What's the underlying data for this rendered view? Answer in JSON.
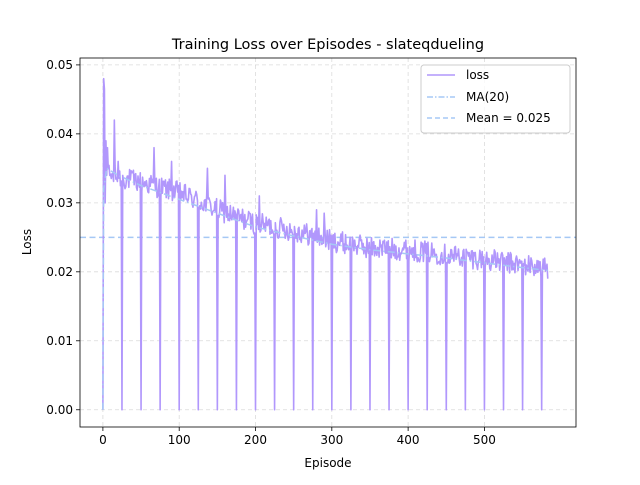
{
  "chart_data": {
    "type": "line",
    "title": "Training Loss over Episodes - slateqdueling",
    "xlabel": "Episode",
    "ylabel": "Loss",
    "xlim": [
      -30,
      620
    ],
    "ylim": [
      -0.0025,
      0.051
    ],
    "xticks": [
      0,
      100,
      200,
      300,
      400,
      500
    ],
    "xtick_labels": [
      "0",
      "100",
      "200",
      "300",
      "400",
      "500"
    ],
    "yticks": [
      0.0,
      0.01,
      0.02,
      0.03,
      0.04,
      0.05
    ],
    "ytick_labels": [
      "0.00",
      "0.01",
      "0.02",
      "0.03",
      "0.04",
      "0.05"
    ],
    "grid": true,
    "legend_position": "top-right",
    "legend": [
      "loss",
      "MA(20)",
      "Mean = 0.025"
    ],
    "series": [
      {
        "name": "loss",
        "color": "#b197fc",
        "style": "solid",
        "start_points": [
          [
            0,
            0.0
          ],
          [
            1,
            0.048
          ],
          [
            2,
            0.0465
          ],
          [
            3,
            0.03
          ],
          [
            4,
            0.039
          ],
          [
            5,
            0.034
          ],
          [
            6,
            0.038
          ],
          [
            7,
            0.035
          ]
        ],
        "trend": [
          [
            8,
            0.034
          ],
          [
            50,
            0.033
          ],
          [
            100,
            0.0315
          ],
          [
            150,
            0.029
          ],
          [
            200,
            0.027
          ],
          [
            250,
            0.026
          ],
          [
            300,
            0.0245
          ],
          [
            350,
            0.0235
          ],
          [
            400,
            0.0232
          ],
          [
            450,
            0.0225
          ],
          [
            500,
            0.0218
          ],
          [
            550,
            0.021
          ],
          [
            583,
            0.0205
          ]
        ],
        "end_value": 0.019,
        "noise_amplitude": 0.0016,
        "spikes": [
          [
            15,
            0.042
          ],
          [
            20,
            0.036
          ],
          [
            67,
            0.038
          ],
          [
            90,
            0.036
          ],
          [
            137,
            0.035
          ],
          [
            160,
            0.034
          ],
          [
            205,
            0.031
          ],
          [
            280,
            0.029
          ],
          [
            290,
            0.0285
          ]
        ],
        "zero_dips": [
          25,
          50,
          75,
          100,
          125,
          150,
          175,
          200,
          225,
          250,
          275,
          300,
          325,
          350,
          375,
          400,
          425,
          450,
          475,
          500,
          525,
          550,
          575
        ],
        "x_end": 583
      },
      {
        "name": "MA(20)",
        "color": "#a5c8f5",
        "style": "dashdot",
        "points": [
          [
            0,
            0.0
          ],
          [
            1,
            0.032
          ],
          [
            5,
            0.035
          ],
          [
            20,
            0.034
          ],
          [
            50,
            0.0325
          ],
          [
            100,
            0.0305
          ],
          [
            150,
            0.0285
          ],
          [
            200,
            0.0265
          ],
          [
            250,
            0.0252
          ],
          [
            300,
            0.024
          ],
          [
            350,
            0.0232
          ],
          [
            400,
            0.0226
          ],
          [
            450,
            0.022
          ],
          [
            500,
            0.0213
          ],
          [
            550,
            0.0206
          ],
          [
            583,
            0.0202
          ]
        ]
      },
      {
        "name": "Mean = 0.025",
        "color": "#a5c8f5",
        "style": "dashed",
        "y": 0.025
      }
    ]
  }
}
